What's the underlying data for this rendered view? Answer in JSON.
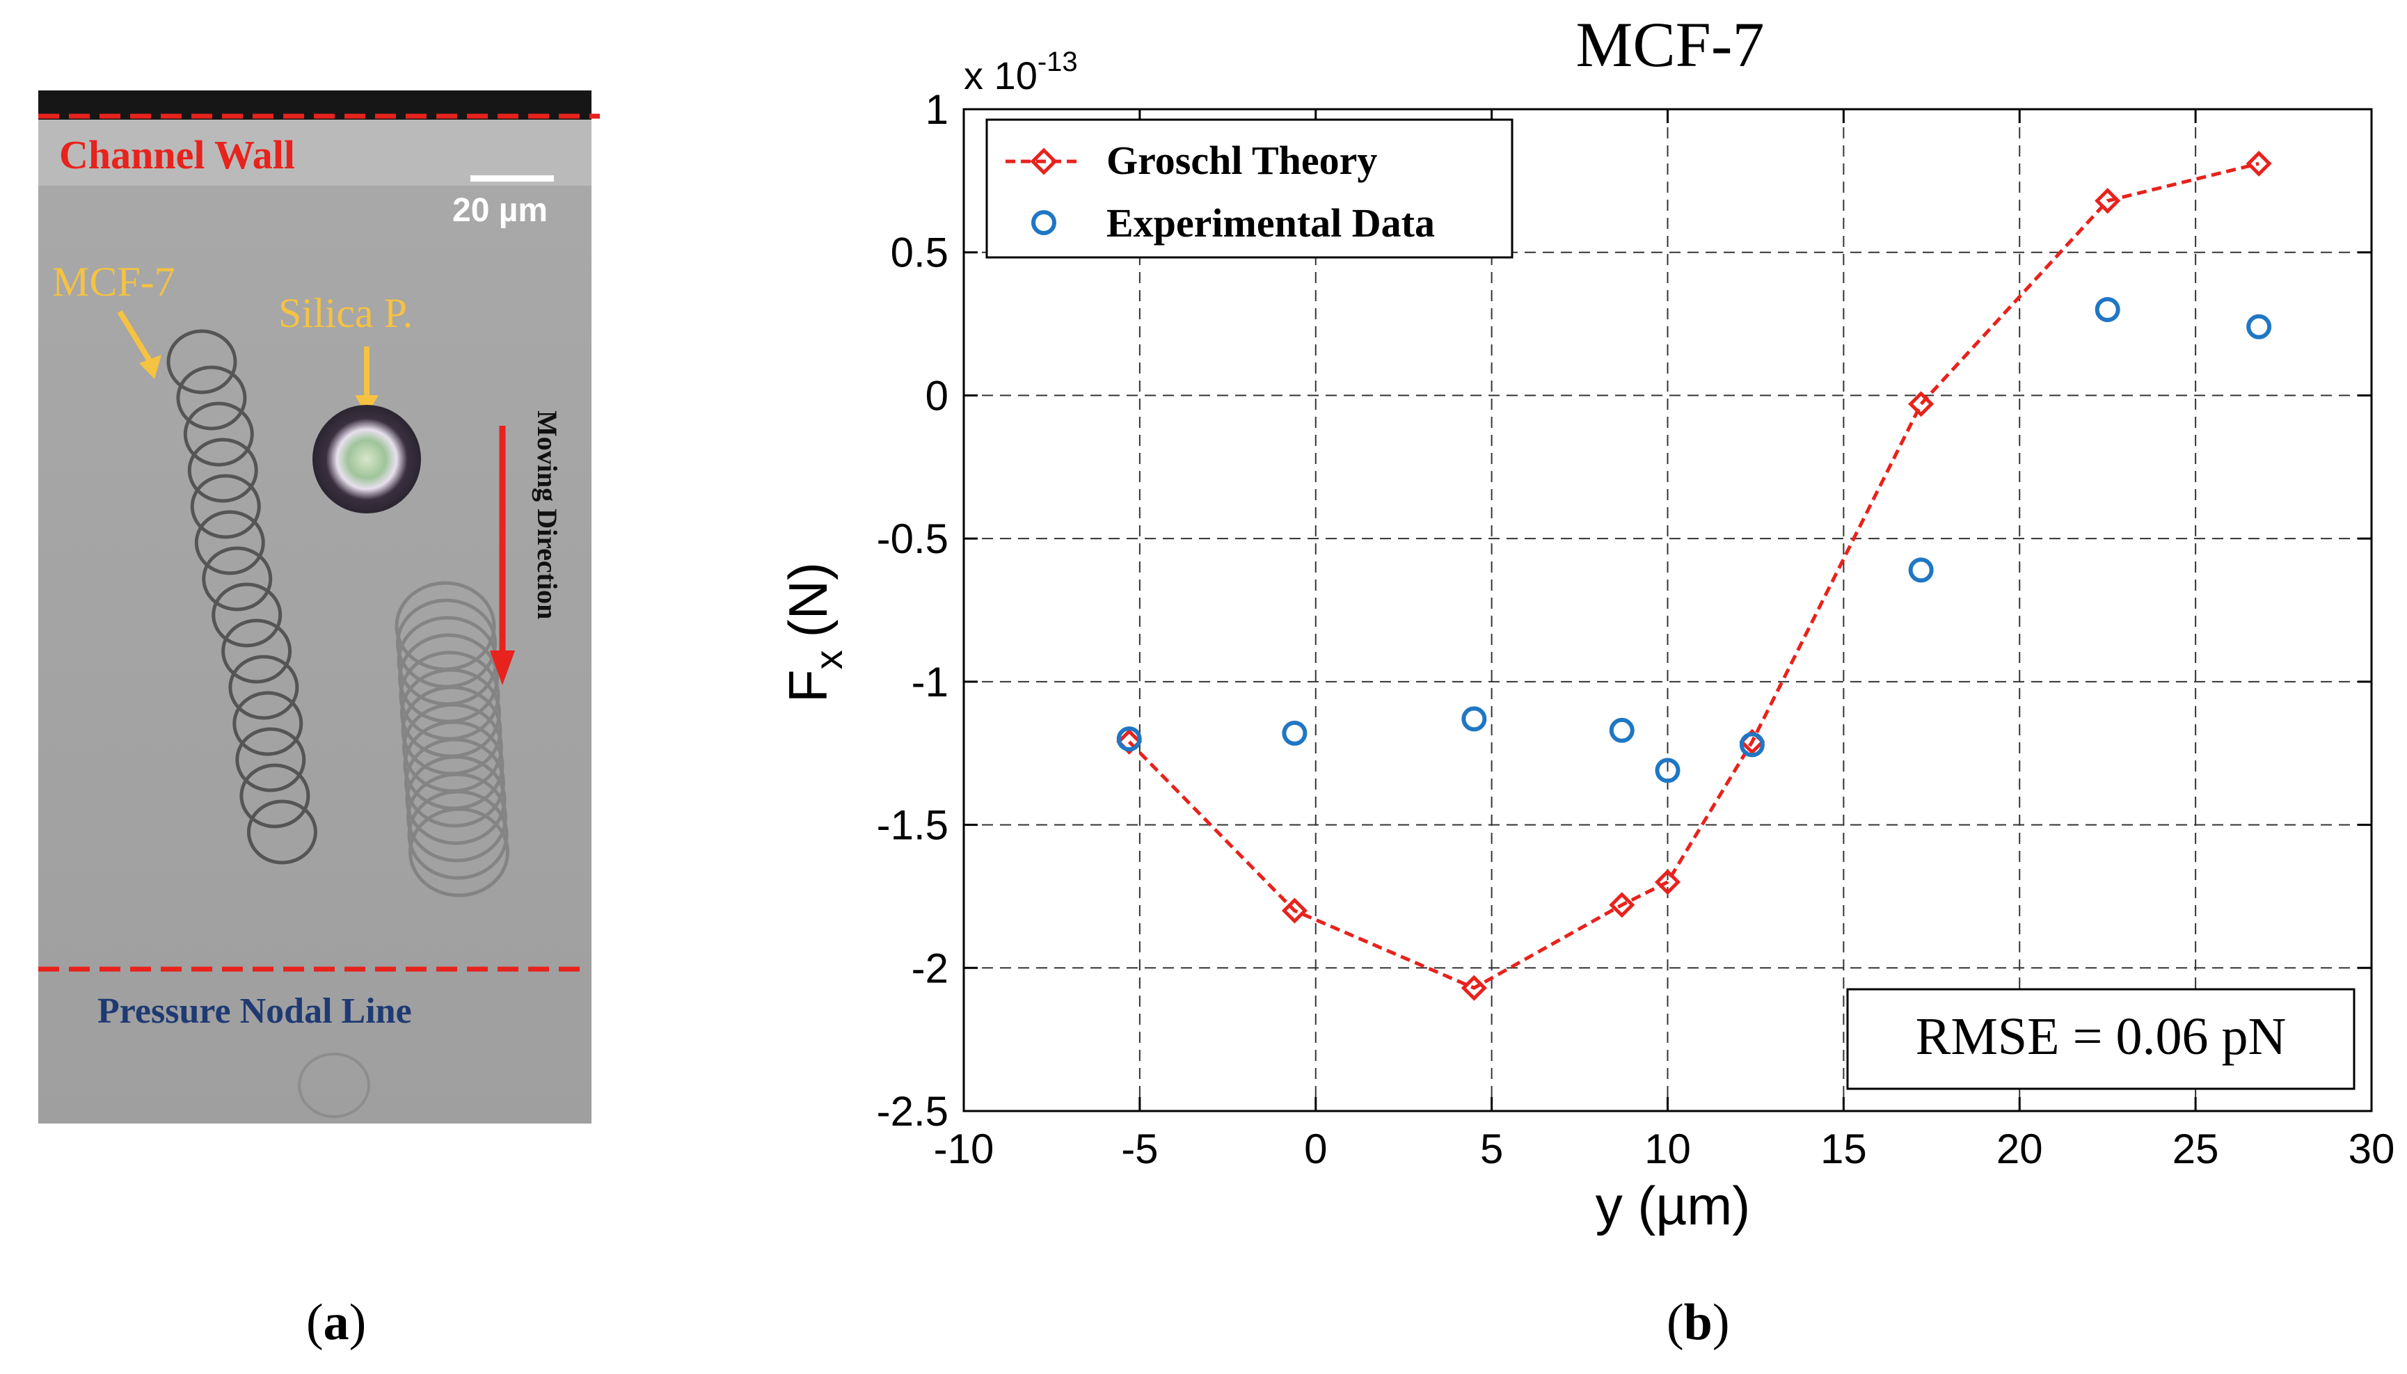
{
  "panel_a": {
    "label_open": "(",
    "label_letter": "a",
    "label_close": ")",
    "channel_wall": "Channel Wall",
    "scale_bar": "20 µm",
    "cell_label": "MCF-7",
    "particle_label": "Silica P.",
    "moving_direction": "Moving Direction",
    "nodal_line": "Pressure Nodal Line",
    "colors": {
      "wall_line": "#e8221c",
      "arrow_yellow": "#f5c242",
      "nodal_text": "#1f3a73",
      "image_bg": "#a7a7a7"
    }
  },
  "panel_b": {
    "label_open": "(",
    "label_letter": "b",
    "label_close": ")"
  },
  "chart_data": {
    "type": "line",
    "title": "MCF-7",
    "xlabel": "y (µm)",
    "ylabel_main": "F",
    "ylabel_sub": "x",
    "ylabel_unit": "(N)",
    "exponent_text": "x 10",
    "exponent_power": "-13",
    "xlim": [
      -10,
      30
    ],
    "ylim": [
      -2.5,
      1
    ],
    "xticks": [
      -10,
      -5,
      0,
      5,
      10,
      15,
      20,
      25,
      30
    ],
    "xtick_labels": [
      "-10",
      "-5",
      "0",
      "5",
      "10",
      "15",
      "20",
      "25",
      "30"
    ],
    "yticks": [
      1,
      0.5,
      0,
      -0.5,
      -1,
      -1.5,
      -2,
      -2.5
    ],
    "ytick_labels": [
      "1",
      "0.5",
      "0",
      "-0.5",
      "-1",
      "-1.5",
      "-2",
      "-2.5"
    ],
    "grid": true,
    "legend_position": "top-left",
    "series": [
      {
        "name": "Groschl Theory",
        "style": "dashed-line-diamond",
        "color": "#e8221c",
        "x": [
          -5.3,
          -0.6,
          4.5,
          8.7,
          10.0,
          12.4,
          17.2,
          22.5,
          26.8
        ],
        "y": [
          -1.21,
          -1.8,
          -2.07,
          -1.78,
          -1.7,
          -1.21,
          -0.03,
          0.68,
          0.81
        ]
      },
      {
        "name": "Experimental Data",
        "style": "circle-markers",
        "color": "#1f77c4",
        "x": [
          -5.3,
          -0.6,
          4.5,
          8.7,
          10.0,
          12.4,
          17.2,
          22.5,
          26.8
        ],
        "y": [
          -1.2,
          -1.18,
          -1.13,
          -1.17,
          -1.31,
          -1.22,
          -0.61,
          0.3,
          0.24
        ]
      }
    ],
    "annotation": "RMSE = 0.06 pN"
  }
}
